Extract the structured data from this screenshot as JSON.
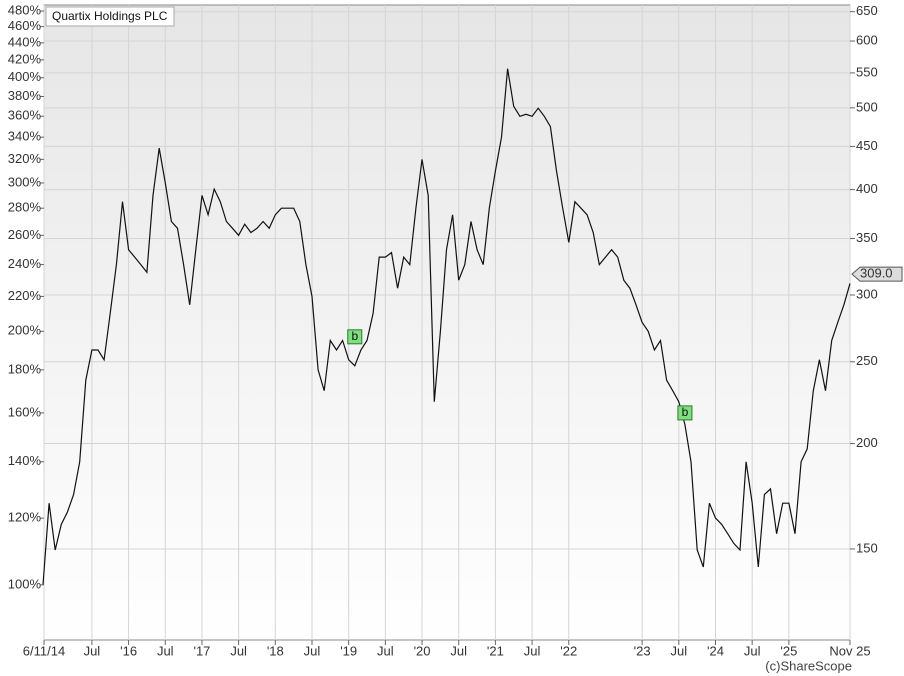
{
  "chart_data": {
    "type": "line",
    "log_scale": true,
    "grid": true,
    "xlim": [
      "2014-11-06",
      "2025-11"
    ],
    "xticks": [
      {
        "value": "2014-11-06",
        "label": "6/11/14"
      },
      {
        "value": "2015-07",
        "label": "Jul"
      },
      {
        "value": "2016-01",
        "label": "'16"
      },
      {
        "value": "2016-07",
        "label": "Jul"
      },
      {
        "value": "2017-01",
        "label": "'17"
      },
      {
        "value": "2017-07",
        "label": "Jul"
      },
      {
        "value": "2018-01",
        "label": "'18"
      },
      {
        "value": "2018-07",
        "label": "Jul"
      },
      {
        "value": "2019-01",
        "label": "'19"
      },
      {
        "value": "2019-07",
        "label": "Jul"
      },
      {
        "value": "2020-01",
        "label": "'20"
      },
      {
        "value": "2020-07",
        "label": "Jul"
      },
      {
        "value": "2021-01",
        "label": "'21"
      },
      {
        "value": "2021-07",
        "label": "Jul"
      },
      {
        "value": "2022-01",
        "label": "'22"
      },
      {
        "value": "2023-01",
        "label": "'23"
      },
      {
        "value": "2023-07",
        "label": "Jul"
      },
      {
        "value": "2024-01",
        "label": "'24"
      },
      {
        "value": "2024-07",
        "label": "Jul"
      },
      {
        "value": "2025-01",
        "label": "'25"
      },
      {
        "value": "2025-11",
        "label": "Nov 25"
      }
    ],
    "ylim": [
      86,
      488
    ],
    "yticks": [
      {
        "value": 100,
        "label": "100%"
      },
      {
        "value": 120,
        "label": "120%"
      },
      {
        "value": 140,
        "label": "140%"
      },
      {
        "value": 160,
        "label": "160%"
      },
      {
        "value": 180,
        "label": "180%"
      },
      {
        "value": 200,
        "label": "200%"
      },
      {
        "value": 220,
        "label": "220%"
      },
      {
        "value": 240,
        "label": "240%"
      },
      {
        "value": 260,
        "label": "260%"
      },
      {
        "value": 280,
        "label": "280%"
      },
      {
        "value": 300,
        "label": "300%"
      },
      {
        "value": 320,
        "label": "320%"
      },
      {
        "value": 340,
        "label": "340%"
      },
      {
        "value": 360,
        "label": "360%"
      },
      {
        "value": 380,
        "label": "380%"
      },
      {
        "value": 400,
        "label": "400%"
      },
      {
        "value": 420,
        "label": "420%"
      },
      {
        "value": 440,
        "label": "440%"
      },
      {
        "value": 460,
        "label": "460%"
      },
      {
        "value": 480,
        "label": "480%"
      }
    ],
    "y2lim": [
      117,
      662
    ],
    "y2ticks": [
      150,
      200,
      250,
      300,
      350,
      400,
      450,
      500,
      550,
      600,
      650
    ],
    "x": [
      "2014-11",
      "2014-12",
      "2015-01",
      "2015-02",
      "2015-03",
      "2015-04",
      "2015-05",
      "2015-06",
      "2015-07",
      "2015-08",
      "2015-09",
      "2015-10",
      "2015-11",
      "2015-12",
      "2016-01",
      "2016-02",
      "2016-03",
      "2016-04",
      "2016-05",
      "2016-06",
      "2016-07",
      "2016-08",
      "2016-09",
      "2016-10",
      "2016-11",
      "2016-12",
      "2017-01",
      "2017-02",
      "2017-03",
      "2017-04",
      "2017-05",
      "2017-06",
      "2017-07",
      "2017-08",
      "2017-09",
      "2017-10",
      "2017-11",
      "2017-12",
      "2018-01",
      "2018-02",
      "2018-03",
      "2018-04",
      "2018-05",
      "2018-06",
      "2018-07",
      "2018-08",
      "2018-09",
      "2018-10",
      "2018-11",
      "2018-12",
      "2019-01",
      "2019-02",
      "2019-03",
      "2019-04",
      "2019-05",
      "2019-06",
      "2019-07",
      "2019-08",
      "2019-09",
      "2019-10",
      "2019-11",
      "2019-12",
      "2020-01",
      "2020-02",
      "2020-03",
      "2020-04",
      "2020-05",
      "2020-06",
      "2020-07",
      "2020-08",
      "2020-09",
      "2020-10",
      "2020-11",
      "2020-12",
      "2021-01",
      "2021-02",
      "2021-03",
      "2021-04",
      "2021-05",
      "2021-06",
      "2021-07",
      "2021-08",
      "2021-09",
      "2021-10",
      "2021-11",
      "2021-12",
      "2022-01",
      "2022-02",
      "2022-03",
      "2022-04",
      "2022-05",
      "2022-06",
      "2022-07",
      "2022-08",
      "2022-09",
      "2022-10",
      "2022-11",
      "2022-12",
      "2023-01",
      "2023-02",
      "2023-03",
      "2023-04",
      "2023-05",
      "2023-06",
      "2023-07",
      "2023-08",
      "2023-09",
      "2023-10",
      "2023-11",
      "2023-12",
      "2024-01",
      "2024-02",
      "2024-03",
      "2024-04",
      "2024-05",
      "2024-06",
      "2024-07",
      "2024-08",
      "2024-09",
      "2024-10",
      "2024-11",
      "2024-12",
      "2025-01",
      "2025-02",
      "2025-03",
      "2025-04",
      "2025-05",
      "2025-06",
      "2025-07",
      "2025-08",
      "2025-09",
      "2025-10",
      "2025-11"
    ],
    "series": [
      {
        "name": "Quartix Holdings PLC",
        "color": "#111111",
        "values": [
          100,
          125,
          110,
          118,
          122,
          128,
          140,
          175,
          190,
          190,
          185,
          210,
          240,
          285,
          250,
          245,
          240,
          235,
          290,
          330,
          300,
          270,
          265,
          240,
          215,
          250,
          290,
          275,
          295,
          285,
          270,
          265,
          260,
          268,
          262,
          265,
          270,
          265,
          275,
          280,
          280,
          280,
          270,
          240,
          220,
          180,
          170,
          195,
          190,
          195,
          185,
          182,
          190,
          195,
          210,
          245,
          245,
          248,
          225,
          245,
          240,
          280,
          320,
          290,
          165,
          200,
          250,
          275,
          230,
          240,
          270,
          250,
          240,
          280,
          310,
          340,
          410,
          370,
          360,
          362,
          360,
          368,
          360,
          350,
          310,
          280,
          255,
          285,
          280,
          275,
          262,
          240,
          245,
          250,
          245,
          230,
          225,
          215,
          205,
          200,
          190,
          195,
          175,
          170,
          165,
          155,
          140,
          110,
          105,
          125,
          120,
          118,
          115,
          112,
          110,
          140,
          125,
          105,
          128,
          130,
          115,
          125,
          125,
          115,
          140,
          145,
          170,
          185,
          170,
          195,
          205,
          215,
          228
        ]
      }
    ],
    "signals": [
      {
        "x": "2019-02",
        "value": 197,
        "label": "b"
      },
      {
        "x": "2023-08",
        "value": 160,
        "label": "b"
      }
    ],
    "last_price": {
      "value": 309,
      "label": "309.0"
    },
    "credit": "(c)ShareScope"
  }
}
